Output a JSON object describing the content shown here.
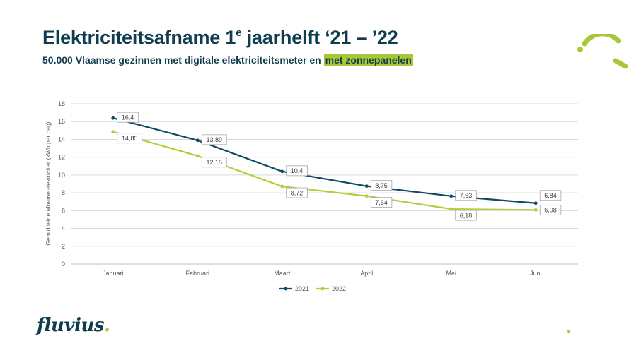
{
  "header": {
    "title_main": "Elektriciteitsafname 1",
    "title_sup": "e",
    "title_rest": " jaarhelft ‘21 – ’22",
    "subtitle_main": "50.000 Vlaamse gezinnen met digitale elektriciteitsmeter en ",
    "subtitle_highlight": "met zonnepanelen"
  },
  "brand": {
    "name": "fluvius",
    "dot": "."
  },
  "colors": {
    "navy": "#0f3d4f",
    "green": "#a8c837",
    "grid": "#d9d9d9",
    "axis_text": "#595959"
  },
  "chart_data": {
    "type": "line",
    "categories": [
      "Januari",
      "Februari",
      "Maart",
      "April",
      "Mei",
      "Juni"
    ],
    "series": [
      {
        "name": "2021",
        "values": [
          16.4,
          13.89,
          10.4,
          8.75,
          7.63,
          6.84
        ],
        "labels": [
          "16,4",
          "13,89",
          "10,4",
          "8,75",
          "7,63",
          "6,84"
        ],
        "color": "#0f4c63"
      },
      {
        "name": "2022",
        "values": [
          14.85,
          12.15,
          8.72,
          7.64,
          6.18,
          6.08
        ],
        "labels": [
          "14,85",
          "12,15",
          "8,72",
          "7,64",
          "6,18",
          "6,08"
        ],
        "color": "#b2cc3a"
      }
    ],
    "ylabel": "Gemiddelde afname elektriciteit (kWh per dag)",
    "ylim": [
      0,
      18
    ],
    "yticks": [
      0,
      2,
      4,
      6,
      8,
      10,
      12,
      14,
      16,
      18
    ],
    "grid": true,
    "legend_placement": "bottom"
  }
}
